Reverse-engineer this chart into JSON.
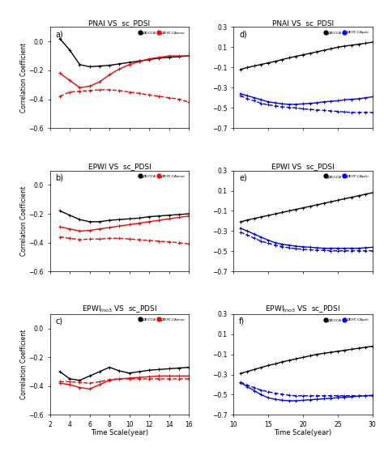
{
  "titles_left": [
    "PNAI VS  sc_PDSI",
    "EPWI VS  sc_PDSI",
    "EPWI$_{Ino3}$ VS  sc_PDSI"
  ],
  "titles_right": [
    "PNAI VS  sc_PDSI",
    "EPWI VS  sc_PDSI",
    "EPWI$_{Ino3}$ VS  sc_PDSI"
  ],
  "ylabel": "Correlation Coefficient",
  "xlabel": "Time Scale(year)",
  "xlim_left": [
    2,
    16
  ],
  "xlim_right": [
    10,
    30
  ],
  "ylim_left": [
    -0.6,
    0.1
  ],
  "ylim_right": [
    -0.7,
    0.3
  ],
  "xticks_left": [
    2,
    4,
    6,
    8,
    10,
    12,
    14,
    16
  ],
  "xticks_right": [
    10,
    15,
    20,
    25,
    30
  ],
  "yticks_left": [
    -0.6,
    -0.4,
    -0.2,
    0.0
  ],
  "yticks_right": [
    -0.7,
    -0.5,
    -0.3,
    -0.1,
    0.1,
    0.3
  ],
  "panel_a": {
    "black_solid_x": [
      3,
      4,
      5,
      6,
      7,
      8,
      9,
      10,
      11,
      12,
      13,
      14,
      15,
      16
    ],
    "black_solid_y": [
      0.02,
      -0.06,
      -0.16,
      -0.175,
      -0.17,
      -0.165,
      -0.155,
      -0.145,
      -0.135,
      -0.125,
      -0.115,
      -0.11,
      -0.105,
      -0.1
    ],
    "red_solid_x": [
      3,
      4,
      5,
      6,
      7,
      8,
      9,
      10,
      11,
      12,
      13,
      14,
      15,
      16
    ],
    "red_solid_y": [
      -0.22,
      -0.27,
      -0.32,
      -0.31,
      -0.28,
      -0.23,
      -0.19,
      -0.16,
      -0.14,
      -0.12,
      -0.11,
      -0.1,
      -0.1,
      -0.1
    ],
    "red_dash_x": [
      3,
      4,
      5,
      6,
      7,
      8,
      9,
      10,
      11,
      12,
      13,
      14,
      15,
      16
    ],
    "red_dash_y": [
      -0.38,
      -0.35,
      -0.345,
      -0.34,
      -0.335,
      -0.335,
      -0.34,
      -0.35,
      -0.36,
      -0.37,
      -0.38,
      -0.39,
      -0.4,
      -0.42
    ]
  },
  "panel_b": {
    "black_solid_x": [
      3,
      4,
      5,
      6,
      7,
      8,
      9,
      10,
      11,
      12,
      13,
      14,
      15,
      16
    ],
    "black_solid_y": [
      -0.18,
      -0.21,
      -0.24,
      -0.255,
      -0.255,
      -0.245,
      -0.24,
      -0.235,
      -0.23,
      -0.22,
      -0.215,
      -0.21,
      -0.205,
      -0.2
    ],
    "red_solid_x": [
      3,
      4,
      5,
      6,
      7,
      8,
      9,
      10,
      11,
      12,
      13,
      14,
      15,
      16
    ],
    "red_solid_y": [
      -0.29,
      -0.305,
      -0.32,
      -0.315,
      -0.305,
      -0.295,
      -0.285,
      -0.275,
      -0.265,
      -0.255,
      -0.245,
      -0.235,
      -0.225,
      -0.215
    ],
    "red_dash_x": [
      3,
      4,
      5,
      6,
      7,
      8,
      9,
      10,
      11,
      12,
      13,
      14,
      15,
      16
    ],
    "red_dash_y": [
      -0.36,
      -0.37,
      -0.38,
      -0.375,
      -0.375,
      -0.37,
      -0.37,
      -0.375,
      -0.38,
      -0.385,
      -0.39,
      -0.395,
      -0.4,
      -0.41
    ]
  },
  "panel_c": {
    "black_solid_x": [
      3,
      4,
      5,
      6,
      7,
      8,
      9,
      10,
      11,
      12,
      13,
      14,
      15,
      16
    ],
    "black_solid_y": [
      -0.3,
      -0.35,
      -0.36,
      -0.33,
      -0.3,
      -0.27,
      -0.295,
      -0.31,
      -0.3,
      -0.29,
      -0.285,
      -0.28,
      -0.275,
      -0.27
    ],
    "red_solid_x": [
      3,
      4,
      5,
      6,
      7,
      8,
      9,
      10,
      11,
      12,
      13,
      14,
      15,
      16
    ],
    "red_solid_y": [
      -0.38,
      -0.39,
      -0.41,
      -0.42,
      -0.39,
      -0.36,
      -0.35,
      -0.345,
      -0.34,
      -0.335,
      -0.33,
      -0.33,
      -0.33,
      -0.33
    ],
    "red_dash_x": [
      3,
      4,
      5,
      6,
      7,
      8,
      9,
      10,
      11,
      12,
      13,
      14,
      15,
      16
    ],
    "red_dash_y": [
      -0.37,
      -0.37,
      -0.375,
      -0.38,
      -0.37,
      -0.355,
      -0.35,
      -0.35,
      -0.35,
      -0.35,
      -0.35,
      -0.35,
      -0.35,
      -0.35
    ]
  },
  "panel_d": {
    "black_solid_x": [
      11,
      12,
      13,
      14,
      15,
      16,
      17,
      18,
      19,
      20,
      21,
      22,
      23,
      24,
      25,
      26,
      27,
      28,
      29,
      30
    ],
    "black_solid_y": [
      -0.12,
      -0.1,
      -0.085,
      -0.07,
      -0.055,
      -0.04,
      -0.022,
      -0.005,
      0.01,
      0.025,
      0.04,
      0.055,
      0.07,
      0.085,
      0.1,
      0.112,
      0.12,
      0.13,
      0.14,
      0.15
    ],
    "blue_solid_x": [
      11,
      12,
      13,
      14,
      15,
      16,
      17,
      18,
      19,
      20,
      21,
      22,
      23,
      24,
      25,
      26,
      27,
      28,
      29,
      30
    ],
    "blue_solid_y": [
      -0.36,
      -0.38,
      -0.4,
      -0.42,
      -0.44,
      -0.45,
      -0.46,
      -0.465,
      -0.465,
      -0.46,
      -0.455,
      -0.45,
      -0.44,
      -0.435,
      -0.43,
      -0.42,
      -0.415,
      -0.41,
      -0.4,
      -0.39
    ],
    "blue_dash_x": [
      11,
      12,
      13,
      14,
      15,
      16,
      17,
      18,
      19,
      20,
      21,
      22,
      23,
      24,
      25,
      26,
      27,
      28,
      29,
      30
    ],
    "blue_dash_y": [
      -0.38,
      -0.41,
      -0.43,
      -0.455,
      -0.47,
      -0.48,
      -0.49,
      -0.495,
      -0.5,
      -0.51,
      -0.515,
      -0.52,
      -0.525,
      -0.53,
      -0.535,
      -0.54,
      -0.545,
      -0.545,
      -0.545,
      -0.545
    ]
  },
  "panel_e": {
    "black_solid_x": [
      11,
      12,
      13,
      14,
      15,
      16,
      17,
      18,
      19,
      20,
      21,
      22,
      23,
      24,
      25,
      26,
      27,
      28,
      29,
      30
    ],
    "black_solid_y": [
      -0.21,
      -0.19,
      -0.175,
      -0.16,
      -0.145,
      -0.13,
      -0.115,
      -0.1,
      -0.085,
      -0.07,
      -0.055,
      -0.04,
      -0.025,
      -0.01,
      0.005,
      0.02,
      0.035,
      0.05,
      0.065,
      0.08
    ],
    "blue_solid_x": [
      11,
      12,
      13,
      14,
      15,
      16,
      17,
      18,
      19,
      20,
      21,
      22,
      23,
      24,
      25,
      26,
      27,
      28,
      29,
      30
    ],
    "blue_solid_y": [
      -0.27,
      -0.3,
      -0.33,
      -0.36,
      -0.39,
      -0.415,
      -0.43,
      -0.44,
      -0.45,
      -0.455,
      -0.46,
      -0.465,
      -0.47,
      -0.47,
      -0.47,
      -0.47,
      -0.47,
      -0.47,
      -0.465,
      -0.46
    ],
    "blue_dash_x": [
      11,
      12,
      13,
      14,
      15,
      16,
      17,
      18,
      19,
      20,
      21,
      22,
      23,
      24,
      25,
      26,
      27,
      28,
      29,
      30
    ],
    "blue_dash_y": [
      -0.31,
      -0.34,
      -0.37,
      -0.4,
      -0.42,
      -0.44,
      -0.455,
      -0.465,
      -0.475,
      -0.48,
      -0.485,
      -0.49,
      -0.49,
      -0.495,
      -0.495,
      -0.495,
      -0.495,
      -0.495,
      -0.495,
      -0.495
    ]
  },
  "panel_f": {
    "black_solid_x": [
      11,
      12,
      13,
      14,
      15,
      16,
      17,
      18,
      19,
      20,
      21,
      22,
      23,
      24,
      25,
      26,
      27,
      28,
      29,
      30
    ],
    "black_solid_y": [
      -0.29,
      -0.27,
      -0.25,
      -0.23,
      -0.21,
      -0.195,
      -0.175,
      -0.16,
      -0.145,
      -0.13,
      -0.115,
      -0.1,
      -0.09,
      -0.08,
      -0.07,
      -0.06,
      -0.05,
      -0.04,
      -0.03,
      -0.02
    ],
    "blue_solid_x": [
      11,
      12,
      13,
      14,
      15,
      16,
      17,
      18,
      19,
      20,
      21,
      22,
      23,
      24,
      25,
      26,
      27,
      28,
      29,
      30
    ],
    "blue_solid_y": [
      -0.38,
      -0.42,
      -0.46,
      -0.5,
      -0.53,
      -0.545,
      -0.555,
      -0.56,
      -0.56,
      -0.555,
      -0.55,
      -0.545,
      -0.54,
      -0.535,
      -0.53,
      -0.525,
      -0.52,
      -0.515,
      -0.51,
      -0.505
    ],
    "blue_dash_x": [
      11,
      12,
      13,
      14,
      15,
      16,
      17,
      18,
      19,
      20,
      21,
      22,
      23,
      24,
      25,
      26,
      27,
      28,
      29,
      30
    ],
    "blue_dash_y": [
      -0.375,
      -0.405,
      -0.43,
      -0.455,
      -0.47,
      -0.485,
      -0.495,
      -0.505,
      -0.51,
      -0.51,
      -0.51,
      -0.51,
      -0.51,
      -0.51,
      -0.51,
      -0.51,
      -0.51,
      -0.51,
      -0.51,
      -0.51
    ]
  }
}
